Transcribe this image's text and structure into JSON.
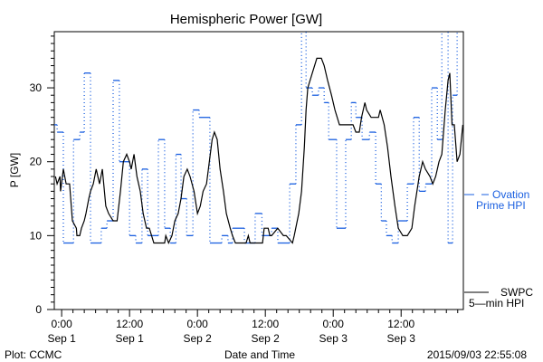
{
  "chart_data": {
    "type": "line",
    "title": "Hemispheric Power [GW]",
    "xlabel": "Date and Time",
    "ylabel": "P [GW]",
    "x_units": "hours since 2015-09-01 00:00",
    "xlim": [
      -1.3,
      71
    ],
    "ylim": [
      0,
      37.6
    ],
    "grid": false,
    "x_ticks": [
      {
        "x": 0,
        "time": "0:00",
        "date": "Sep 1"
      },
      {
        "x": 12,
        "time": "12:00",
        "date": "Sep 1"
      },
      {
        "x": 24,
        "time": "0:00",
        "date": "Sep 2"
      },
      {
        "x": 36,
        "time": "12:00",
        "date": "Sep 2"
      },
      {
        "x": 48,
        "time": "0:00",
        "date": "Sep 3"
      },
      {
        "x": 60,
        "time": "12:00",
        "date": "Sep 3"
      }
    ],
    "y_ticks": [
      0,
      10,
      20,
      30
    ],
    "y_tick_labels": [
      "0",
      "10",
      "20",
      "30"
    ],
    "series": [
      {
        "name": "Ovation Prime HPI",
        "legend": [
          "Ovation",
          "Prime HPI"
        ],
        "color": "#1a5fe0",
        "style": "step-dashed",
        "steps": [
          [
            -1.3,
            25
          ],
          [
            -0.8,
            24
          ],
          [
            0.3,
            9
          ],
          [
            2.1,
            23
          ],
          [
            3.2,
            24
          ],
          [
            4.0,
            32
          ],
          [
            5.1,
            9
          ],
          [
            7.0,
            11
          ],
          [
            8.0,
            12
          ],
          [
            9.1,
            31
          ],
          [
            10.2,
            20
          ],
          [
            12.0,
            10
          ],
          [
            13.1,
            9
          ],
          [
            14.2,
            19
          ],
          [
            15.2,
            10
          ],
          [
            17.1,
            23
          ],
          [
            18.2,
            11
          ],
          [
            19.2,
            9
          ],
          [
            20.2,
            21
          ],
          [
            21.1,
            15
          ],
          [
            22.1,
            10
          ],
          [
            23.2,
            27
          ],
          [
            24.3,
            26
          ],
          [
            26.2,
            9
          ],
          [
            28.3,
            10
          ],
          [
            29.4,
            9
          ],
          [
            30.2,
            11
          ],
          [
            32.3,
            9
          ],
          [
            34.2,
            13
          ],
          [
            35.4,
            10
          ],
          [
            37.1,
            11
          ],
          [
            38.2,
            9
          ],
          [
            40.3,
            17
          ],
          [
            41.4,
            25
          ],
          [
            42.4,
            40
          ],
          [
            43.2,
            30
          ],
          [
            44.3,
            29
          ],
          [
            45.4,
            30
          ],
          [
            46.4,
            28
          ],
          [
            47.2,
            23
          ],
          [
            48.6,
            11
          ],
          [
            50.2,
            23
          ],
          [
            51.2,
            28
          ],
          [
            52.0,
            26
          ],
          [
            53.1,
            23
          ],
          [
            54.4,
            24
          ],
          [
            55.5,
            17
          ],
          [
            56.5,
            12
          ],
          [
            57.4,
            10
          ],
          [
            58.4,
            9
          ],
          [
            59.5,
            12
          ],
          [
            61.1,
            17
          ],
          [
            62.2,
            26
          ],
          [
            63.2,
            16
          ],
          [
            64.3,
            17
          ],
          [
            65.4,
            30
          ],
          [
            66.4,
            23
          ],
          [
            67.2,
            40
          ],
          [
            68.3,
            9
          ],
          [
            69.1,
            29
          ],
          [
            69.9,
            40
          ]
        ],
        "end": 70.9
      },
      {
        "name": "SWPC 5-min HPI",
        "legend": [
          "SWPC",
          "5—min HPI"
        ],
        "color": "#000000",
        "style": "solid",
        "points": [
          [
            -1.1,
            18
          ],
          [
            -0.8,
            17
          ],
          [
            -0.3,
            18
          ],
          [
            -0.2,
            16
          ],
          [
            0.3,
            19
          ],
          [
            0.8,
            17
          ],
          [
            1.4,
            17
          ],
          [
            1.9,
            12
          ],
          [
            2.6,
            11
          ],
          [
            2.7,
            10
          ],
          [
            3.2,
            10
          ],
          [
            3.5,
            11
          ],
          [
            4.0,
            12
          ],
          [
            4.3,
            13
          ],
          [
            4.8,
            15
          ],
          [
            5.1,
            16
          ],
          [
            5.6,
            17
          ],
          [
            6.1,
            19
          ],
          [
            6.7,
            17
          ],
          [
            7.2,
            19
          ],
          [
            7.8,
            14
          ],
          [
            8.3,
            13
          ],
          [
            9.1,
            12
          ],
          [
            9.8,
            12
          ],
          [
            10.4,
            16
          ],
          [
            10.9,
            20
          ],
          [
            11.5,
            21
          ],
          [
            12.0,
            20
          ],
          [
            12.3,
            19
          ],
          [
            12.8,
            21
          ],
          [
            13.3,
            18
          ],
          [
            13.9,
            16
          ],
          [
            14.4,
            13
          ],
          [
            15.0,
            11
          ],
          [
            15.5,
            11
          ],
          [
            16.3,
            9
          ],
          [
            18.2,
            9
          ],
          [
            18.4,
            10
          ],
          [
            18.9,
            9
          ],
          [
            19.5,
            10
          ],
          [
            20.0,
            12
          ],
          [
            20.6,
            13
          ],
          [
            21.1,
            15
          ],
          [
            21.6,
            18
          ],
          [
            22.2,
            19
          ],
          [
            22.7,
            18
          ],
          [
            23.4,
            16
          ],
          [
            24.0,
            13
          ],
          [
            24.5,
            14
          ],
          [
            25.0,
            16
          ],
          [
            25.6,
            17
          ],
          [
            26.1,
            20
          ],
          [
            26.6,
            23
          ],
          [
            27.0,
            24
          ],
          [
            27.5,
            23
          ],
          [
            28.0,
            19
          ],
          [
            28.6,
            16
          ],
          [
            29.1,
            13
          ],
          [
            29.8,
            11
          ],
          [
            30.2,
            10
          ],
          [
            30.7,
            9
          ],
          [
            32.6,
            9
          ],
          [
            33.0,
            10
          ],
          [
            33.3,
            9
          ],
          [
            35.5,
            9
          ],
          [
            35.8,
            11
          ],
          [
            36.5,
            11
          ],
          [
            36.8,
            10
          ],
          [
            37.1,
            10
          ],
          [
            38.2,
            11
          ],
          [
            39.2,
            10
          ],
          [
            39.7,
            10
          ],
          [
            40.8,
            9
          ],
          [
            41.1,
            10
          ],
          [
            41.9,
            13
          ],
          [
            42.4,
            16
          ],
          [
            42.9,
            22
          ],
          [
            43.2,
            27
          ],
          [
            43.5,
            30
          ],
          [
            44.3,
            32
          ],
          [
            45.1,
            34
          ],
          [
            45.9,
            34
          ],
          [
            46.4,
            33
          ],
          [
            47.0,
            31
          ],
          [
            47.7,
            29
          ],
          [
            48.3,
            27
          ],
          [
            49.1,
            25
          ],
          [
            51.5,
            25
          ],
          [
            52.0,
            24
          ],
          [
            52.6,
            24
          ],
          [
            53.0,
            26
          ],
          [
            53.6,
            28
          ],
          [
            53.9,
            27
          ],
          [
            54.7,
            26
          ],
          [
            56.0,
            26
          ],
          [
            56.3,
            27
          ],
          [
            57.0,
            25
          ],
          [
            57.6,
            22
          ],
          [
            58.2,
            18
          ],
          [
            58.9,
            14
          ],
          [
            59.5,
            11
          ],
          [
            60.3,
            10
          ],
          [
            61.1,
            10
          ],
          [
            61.9,
            11
          ],
          [
            62.4,
            14
          ],
          [
            63.2,
            18
          ],
          [
            63.8,
            20
          ],
          [
            64.3,
            19
          ],
          [
            65.1,
            18
          ],
          [
            65.6,
            17
          ],
          [
            66.1,
            18
          ],
          [
            66.7,
            20
          ],
          [
            67.2,
            21
          ],
          [
            67.8,
            27
          ],
          [
            68.3,
            31
          ],
          [
            68.6,
            32
          ],
          [
            69.0,
            25
          ],
          [
            69.4,
            25
          ],
          [
            69.9,
            20
          ],
          [
            70.4,
            21
          ],
          [
            70.9,
            25
          ]
        ]
      }
    ]
  },
  "footer": {
    "left": "Plot: CCMC",
    "center": "Date and Time",
    "right": "2015/09/03 22:55:08"
  }
}
